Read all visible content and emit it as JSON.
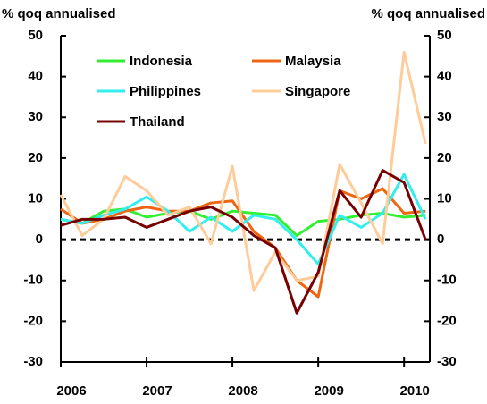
{
  "chart_data": {
    "type": "line",
    "y_label": "% qoq annualised",
    "y2_label": "% qoq annualised",
    "x": [
      2006,
      2006.25,
      2006.5,
      2006.75,
      2007,
      2007.25,
      2007.5,
      2007.75,
      2008,
      2008.25,
      2008.5,
      2008.75,
      2009,
      2009.25,
      2009.5,
      2009.75,
      2010,
      2010.25
    ],
    "xlim": [
      2006,
      2010.3
    ],
    "xticks": [
      2006,
      2007,
      2008,
      2009,
      2010
    ],
    "ylim": [
      -30,
      50
    ],
    "yticks": [
      -30,
      -20,
      -10,
      0,
      10,
      20,
      30,
      40,
      50
    ],
    "y2lim": [
      -30,
      50
    ],
    "y2ticks": [
      -30,
      -20,
      -10,
      0,
      10,
      20,
      30,
      40,
      50
    ],
    "series": [
      {
        "name": "Indonesia",
        "color": "#33ee33",
        "values": [
          5,
          4,
          7,
          7.5,
          5.5,
          6.5,
          7,
          5,
          7,
          6.5,
          6,
          1,
          4.5,
          5,
          6,
          6.5,
          5.5,
          6
        ]
      },
      {
        "name": "Malaysia",
        "color": "#ee6611",
        "values": [
          7.5,
          4,
          5,
          7,
          8,
          7,
          7,
          9,
          9.5,
          2,
          -2,
          -10,
          -14,
          12,
          10,
          12.5,
          6.5,
          7
        ]
      },
      {
        "name": "Philippines",
        "color": "#33eeee",
        "values": [
          5,
          4,
          6,
          7.5,
          10.5,
          7,
          2,
          5.5,
          2,
          6,
          5,
          0,
          -6,
          6,
          3,
          6.5,
          16,
          5
        ]
      },
      {
        "name": "Singapore",
        "color": "#ffcc99",
        "values": [
          11,
          1,
          5,
          15.5,
          12,
          6,
          8,
          -1,
          18,
          -12.5,
          -3,
          -10,
          -9,
          18.5,
          9,
          -1,
          46,
          23.5
        ]
      },
      {
        "name": "Thailand",
        "color": "#770000",
        "values": [
          3.5,
          5,
          5,
          5.5,
          3,
          5,
          7,
          8,
          5.5,
          1,
          -2,
          -18,
          -8,
          12,
          5.5,
          17,
          14,
          0
        ]
      }
    ]
  }
}
